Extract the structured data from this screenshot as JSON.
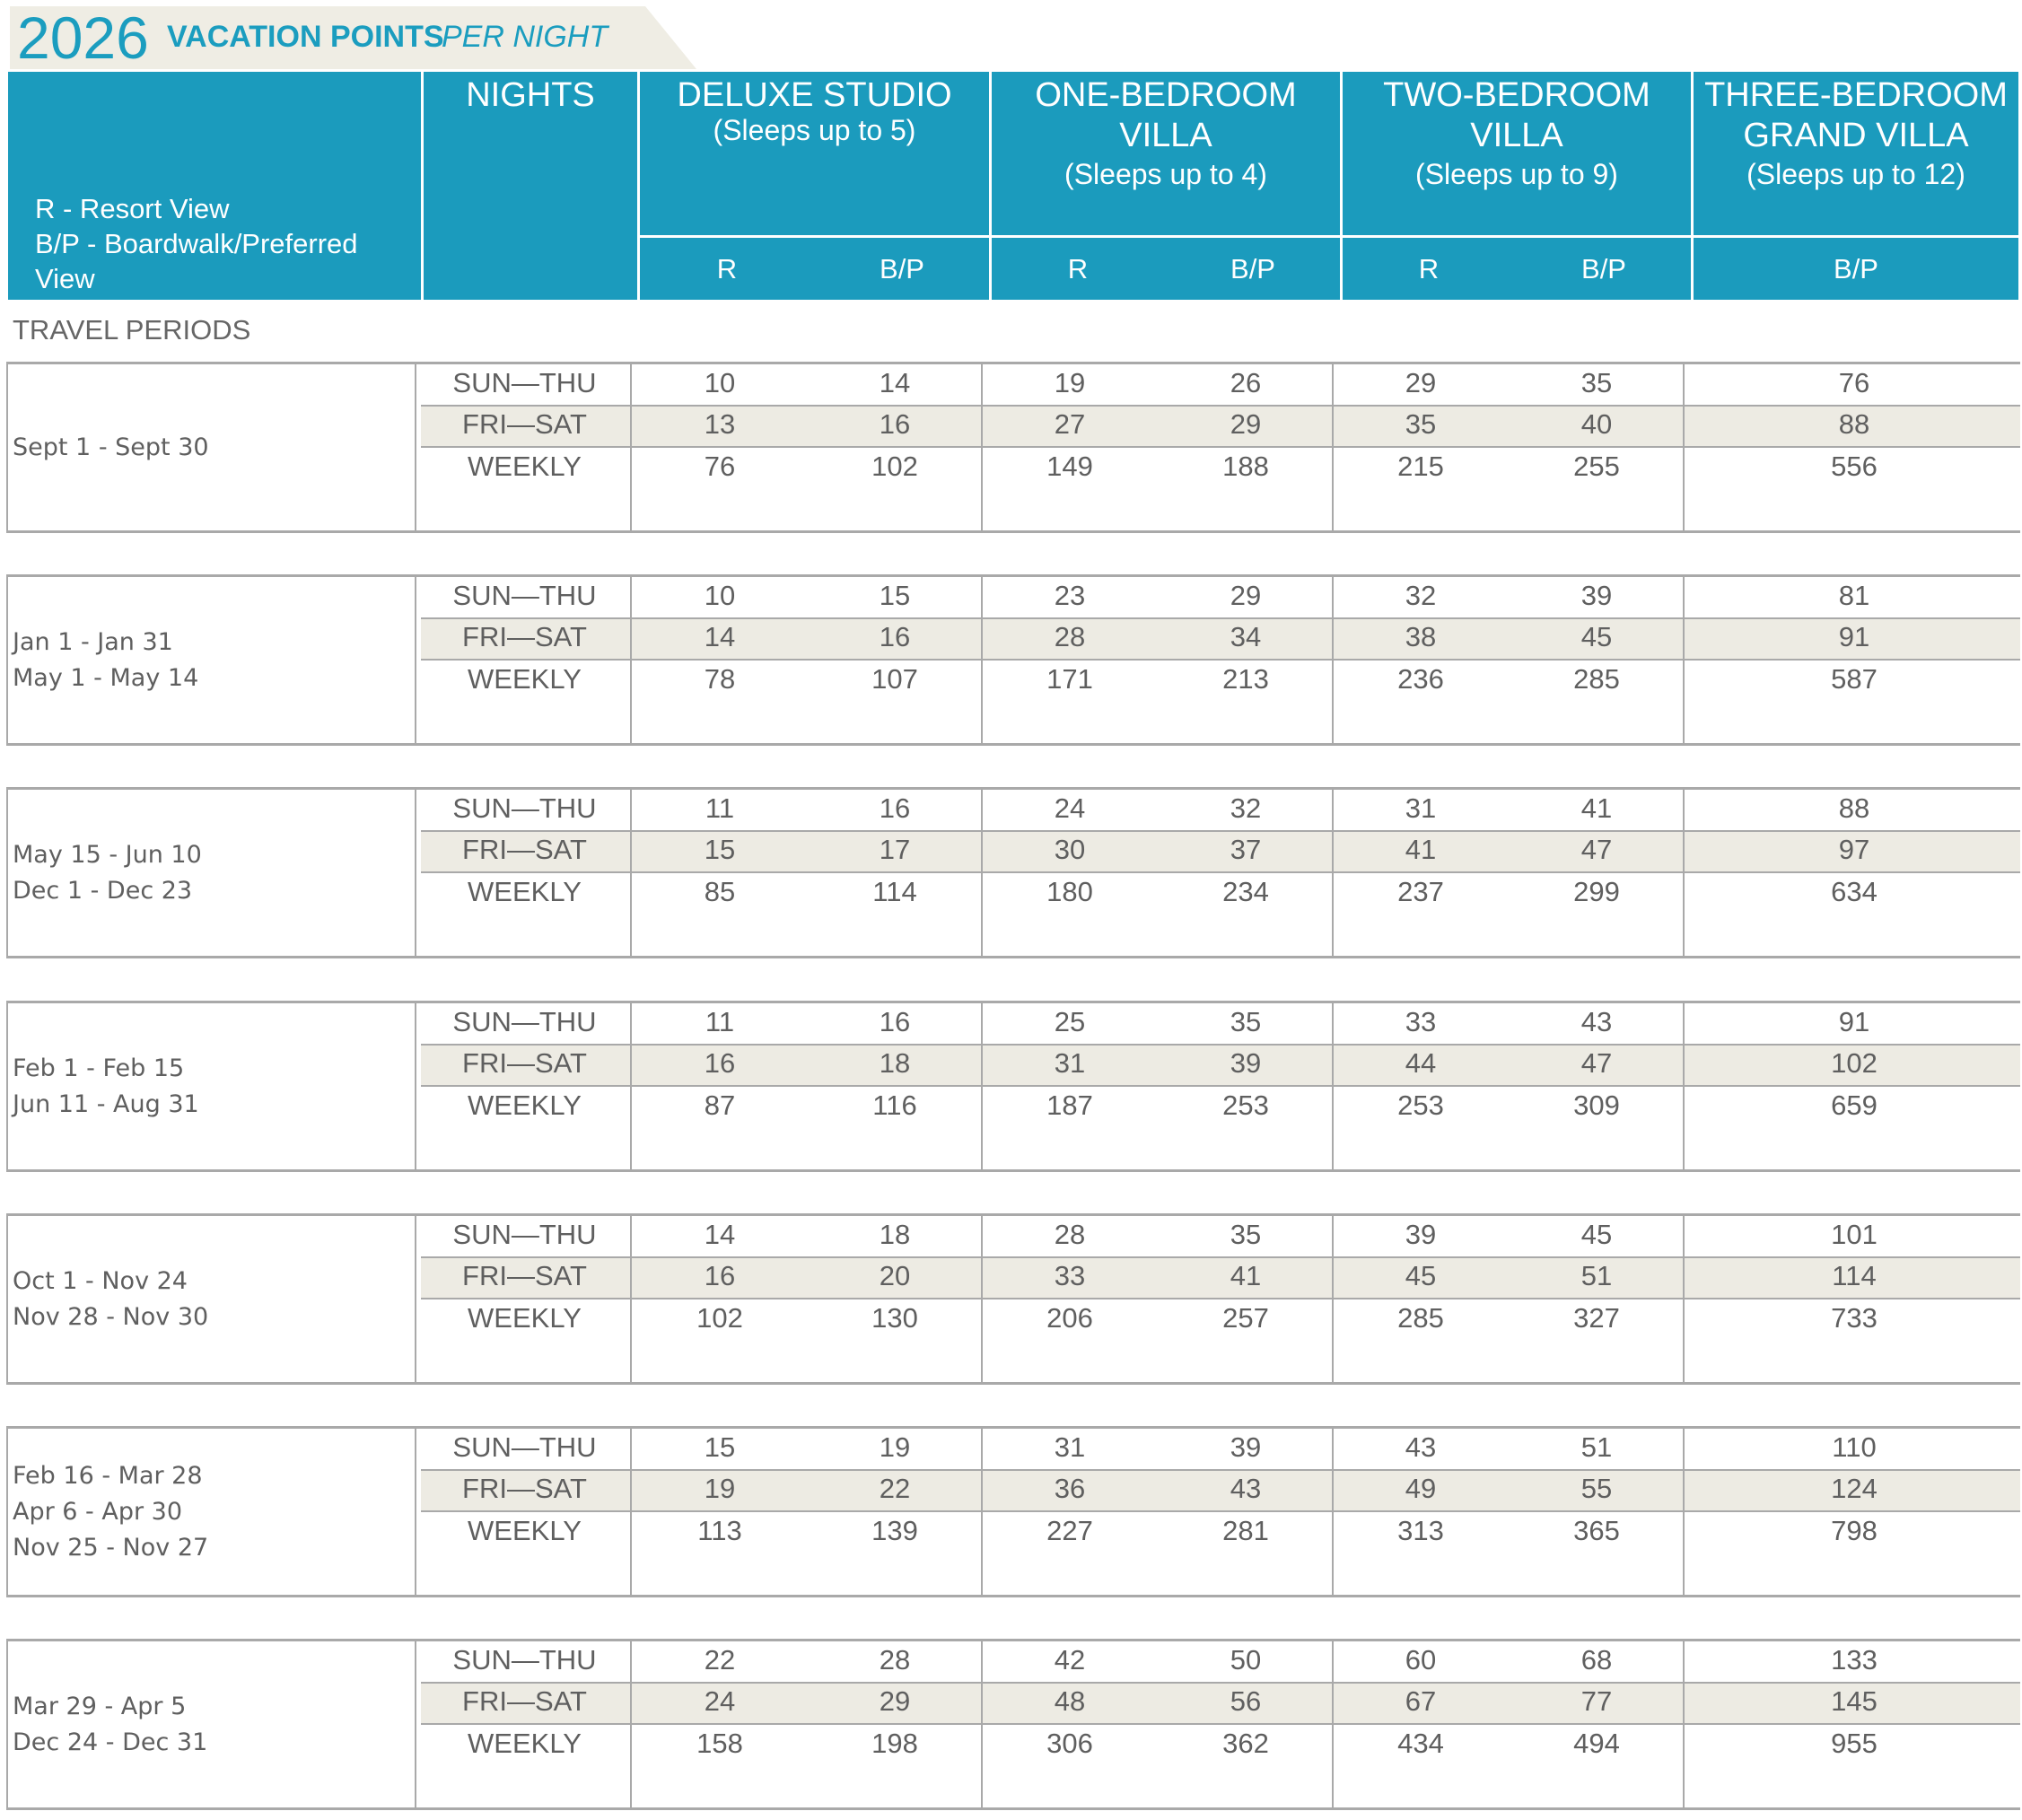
{
  "banner": {
    "year": "2026",
    "title": "VACATION POINTS",
    "subtitle": "PER NIGHT"
  },
  "header": {
    "legend": [
      "R - Resort View",
      "B/P - Boardwalk/Preferred",
      "View"
    ],
    "nights": "NIGHTS",
    "room_types": [
      {
        "name_lines": [
          "DELUXE STUDIO"
        ],
        "sleeps": "(Sleeps up to 5)",
        "views": [
          "R",
          "B/P"
        ]
      },
      {
        "name_lines": [
          "ONE-BEDROOM",
          "VILLA"
        ],
        "sleeps": "(Sleeps up to 4)",
        "views": [
          "R",
          "B/P"
        ]
      },
      {
        "name_lines": [
          "TWO-BEDROOM",
          "VILLA"
        ],
        "sleeps": "(Sleeps up to 9)",
        "views": [
          "R",
          "B/P"
        ]
      },
      {
        "name_lines": [
          "THREE-BEDROOM",
          "GRAND VILLA"
        ],
        "sleeps": "(Sleeps up to 12)",
        "views": [
          "B/P"
        ]
      }
    ]
  },
  "travel_periods_label": "TRAVEL PERIODS",
  "night_labels": [
    "SUN—THU",
    "FRI—SAT",
    "WEEKLY"
  ],
  "periods": [
    {
      "dates": [
        "Sept 1 - Sept 30"
      ],
      "rows": [
        [
          "10",
          "14",
          "19",
          "26",
          "29",
          "35",
          "76"
        ],
        [
          "13",
          "16",
          "27",
          "29",
          "35",
          "40",
          "88"
        ],
        [
          "76",
          "102",
          "149",
          "188",
          "215",
          "255",
          "556"
        ]
      ]
    },
    {
      "dates": [
        "Jan 1 - Jan 31",
        "May 1 - May 14"
      ],
      "rows": [
        [
          "10",
          "15",
          "23",
          "29",
          "32",
          "39",
          "81"
        ],
        [
          "14",
          "16",
          "28",
          "34",
          "38",
          "45",
          "91"
        ],
        [
          "78",
          "107",
          "171",
          "213",
          "236",
          "285",
          "587"
        ]
      ]
    },
    {
      "dates": [
        "May 15 - Jun 10",
        "Dec 1 - Dec 23"
      ],
      "rows": [
        [
          "11",
          "16",
          "24",
          "32",
          "31",
          "41",
          "88"
        ],
        [
          "15",
          "17",
          "30",
          "37",
          "41",
          "47",
          "97"
        ],
        [
          "85",
          "114",
          "180",
          "234",
          "237",
          "299",
          "634"
        ]
      ]
    },
    {
      "dates": [
        "Feb 1 - Feb 15",
        "Jun 11 - Aug 31"
      ],
      "rows": [
        [
          "11",
          "16",
          "25",
          "35",
          "33",
          "43",
          "91"
        ],
        [
          "16",
          "18",
          "31",
          "39",
          "44",
          "47",
          "102"
        ],
        [
          "87",
          "116",
          "187",
          "253",
          "253",
          "309",
          "659"
        ]
      ]
    },
    {
      "dates": [
        "Oct 1 - Nov 24",
        "Nov 28 - Nov 30"
      ],
      "rows": [
        [
          "14",
          "18",
          "28",
          "35",
          "39",
          "45",
          "101"
        ],
        [
          "16",
          "20",
          "33",
          "41",
          "45",
          "51",
          "114"
        ],
        [
          "102",
          "130",
          "206",
          "257",
          "285",
          "327",
          "733"
        ]
      ]
    },
    {
      "dates": [
        "Feb 16 - Mar 28",
        "Apr 6 - Apr 30",
        "Nov 25 - Nov 27"
      ],
      "rows": [
        [
          "15",
          "19",
          "31",
          "39",
          "43",
          "51",
          "110"
        ],
        [
          "19",
          "22",
          "36",
          "43",
          "49",
          "55",
          "124"
        ],
        [
          "113",
          "139",
          "227",
          "281",
          "313",
          "365",
          "798"
        ]
      ]
    },
    {
      "dates": [
        "Mar 29 - Apr 5",
        "Dec 24 - Dec 31"
      ],
      "rows": [
        [
          "22",
          "28",
          "42",
          "50",
          "60",
          "68",
          "133"
        ],
        [
          "24",
          "29",
          "48",
          "56",
          "67",
          "77",
          "145"
        ],
        [
          "158",
          "198",
          "306",
          "362",
          "434",
          "494",
          "955"
        ]
      ]
    }
  ],
  "colors": {
    "header_bg": "#1b9bbd",
    "band_bg": "#edebe3",
    "banner_bg": "#efede4",
    "accent": "#1b9dbf"
  }
}
